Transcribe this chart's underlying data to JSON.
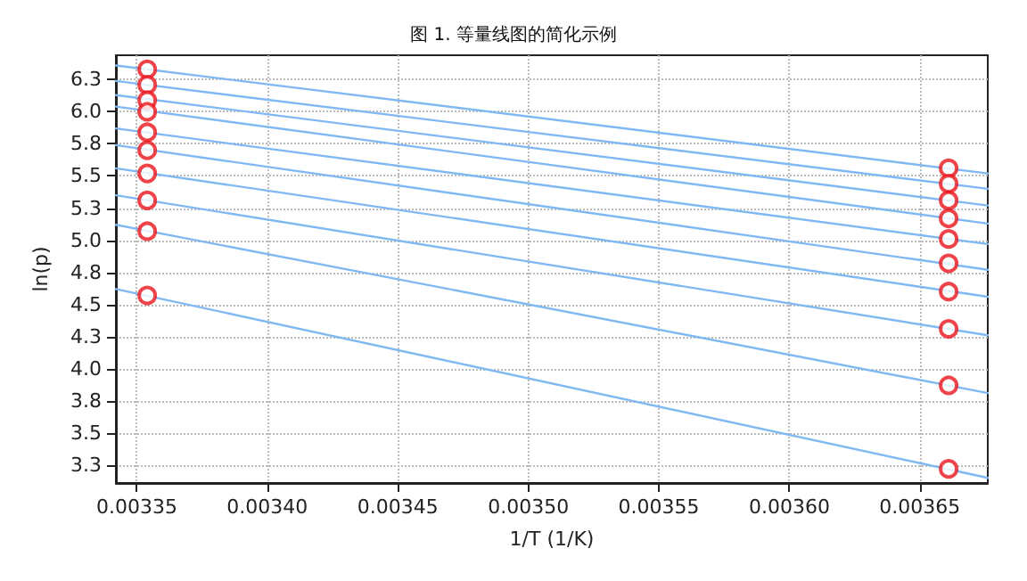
{
  "chart_data": {
    "type": "scatter",
    "title": "图 1. 等量线图的简化示例",
    "xlabel": "1/T (1/K)",
    "ylabel": "ln(p)",
    "xlim": [
      0.003342,
      0.003676
    ],
    "ylim": [
      3.11,
      6.44
    ],
    "xticks": [
      {
        "value": 0.00335,
        "label": "0.00335"
      },
      {
        "value": 0.0034,
        "label": "0.00340"
      },
      {
        "value": 0.00345,
        "label": "0.00345"
      },
      {
        "value": 0.0035,
        "label": "0.00350"
      },
      {
        "value": 0.00355,
        "label": "0.00355"
      },
      {
        "value": 0.0036,
        "label": "0.00360"
      },
      {
        "value": 0.00365,
        "label": "0.00365"
      }
    ],
    "yticks": [
      {
        "value": 3.25,
        "label": "3.3"
      },
      {
        "value": 3.5,
        "label": "3.5"
      },
      {
        "value": 3.75,
        "label": "3.8"
      },
      {
        "value": 4.0,
        "label": "4.0"
      },
      {
        "value": 4.25,
        "label": "4.3"
      },
      {
        "value": 4.5,
        "label": "4.5"
      },
      {
        "value": 4.75,
        "label": "4.8"
      },
      {
        "value": 5.0,
        "label": "5.0"
      },
      {
        "value": 5.25,
        "label": "5.3"
      },
      {
        "value": 5.5,
        "label": "5.5"
      },
      {
        "value": 5.75,
        "label": "5.8"
      },
      {
        "value": 6.0,
        "label": "6.0"
      },
      {
        "value": 6.25,
        "label": "6.3"
      }
    ],
    "grid": true,
    "series": [
      {
        "type": "line",
        "marker": "none",
        "color": "#7fb8f2",
        "x": [
          0.003342,
          0.003676
        ],
        "values": [
          6.36,
          5.52
        ]
      },
      {
        "type": "line",
        "marker": "none",
        "color": "#7fb8f2",
        "x": [
          0.003342,
          0.003676
        ],
        "values": [
          6.24,
          5.4
        ]
      },
      {
        "type": "line",
        "marker": "none",
        "color": "#7fb8f2",
        "x": [
          0.003342,
          0.003676
        ],
        "values": [
          6.13,
          5.27
        ]
      },
      {
        "type": "line",
        "marker": "none",
        "color": "#7fb8f2",
        "x": [
          0.003342,
          0.003676
        ],
        "values": [
          6.04,
          5.13
        ]
      },
      {
        "type": "line",
        "marker": "none",
        "color": "#7fb8f2",
        "x": [
          0.003342,
          0.003676
        ],
        "values": [
          5.87,
          4.97
        ]
      },
      {
        "type": "line",
        "marker": "none",
        "color": "#7fb8f2",
        "x": [
          0.003342,
          0.003676
        ],
        "values": [
          5.74,
          4.77
        ]
      },
      {
        "type": "line",
        "marker": "none",
        "color": "#7fb8f2",
        "x": [
          0.003342,
          0.003676
        ],
        "values": [
          5.56,
          4.56
        ]
      },
      {
        "type": "line",
        "marker": "none",
        "color": "#7fb8f2",
        "x": [
          0.003342,
          0.003676
        ],
        "values": [
          5.35,
          4.26
        ]
      },
      {
        "type": "line",
        "marker": "none",
        "color": "#7fb8f2",
        "x": [
          0.003342,
          0.003676
        ],
        "values": [
          5.12,
          3.81
        ]
      },
      {
        "type": "line",
        "marker": "none",
        "color": "#7fb8f2",
        "x": [
          0.003342,
          0.003676
        ],
        "values": [
          4.62,
          3.15
        ]
      },
      {
        "marker": "circle",
        "color": "#e8141c",
        "x": [
          0.003354,
          0.003354,
          0.003354,
          0.003354,
          0.003354,
          0.003354,
          0.003354,
          0.003354,
          0.003354,
          0.003354,
          0.003661,
          0.003661,
          0.003661,
          0.003661,
          0.003661,
          0.003661,
          0.003661,
          0.003661,
          0.003661,
          0.003661
        ],
        "values": [
          6.33,
          6.21,
          6.09,
          6.0,
          5.84,
          5.7,
          5.52,
          5.31,
          5.07,
          4.57,
          5.56,
          5.44,
          5.31,
          5.17,
          5.01,
          4.82,
          4.6,
          4.31,
          3.87,
          3.22
        ]
      }
    ]
  }
}
